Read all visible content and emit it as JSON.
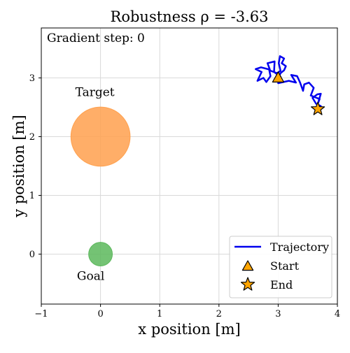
{
  "chart_data": {
    "type": "scatter",
    "title": "Robustness ρ = -3.63",
    "annotation": "Gradient step: 0",
    "xlabel": "x position [m]",
    "ylabel": "y position [m]",
    "xlim": [
      -1,
      4
    ],
    "ylim": [
      -0.85,
      3.85
    ],
    "xticks": [
      "−1",
      "0",
      "1",
      "2",
      "3",
      "4"
    ],
    "xtick_values": [
      -1,
      0,
      1,
      2,
      3,
      4
    ],
    "yticks": [
      "0",
      "1",
      "2",
      "3"
    ],
    "ytick_values": [
      0,
      1,
      2,
      3
    ],
    "grid": true,
    "regions": [
      {
        "label": "Target",
        "center": [
          0,
          2
        ],
        "radius": 0.5,
        "color": "#ffa04d"
      },
      {
        "label": "Goal",
        "center": [
          0,
          0
        ],
        "radius": 0.2,
        "color": "#5cb85c"
      }
    ],
    "trajectory": {
      "name": "Trajectory",
      "color": "#0000ee",
      "x": [
        3.0,
        3.04,
        3.1,
        3.13,
        3.06,
        3.1,
        3.03,
        3.01,
        3.04,
        2.98,
        2.85,
        2.87,
        2.8,
        2.75,
        2.65,
        2.72,
        2.62,
        2.71,
        2.86,
        2.82,
        2.94,
        2.93,
        3.04,
        3.0,
        3.18,
        3.3,
        3.22,
        3.32,
        3.37,
        3.42,
        3.44,
        3.52,
        3.6,
        3.55,
        3.7,
        3.67,
        3.72,
        3.66,
        3.58,
        3.64,
        3.72,
        3.67
      ],
      "y": [
        3.0,
        3.08,
        3.13,
        3.2,
        3.25,
        3.33,
        3.37,
        3.25,
        3.12,
        3.08,
        3.13,
        3.03,
        2.93,
        3.0,
        2.95,
        3.1,
        3.15,
        3.18,
        3.14,
        3.25,
        3.28,
        3.1,
        3.02,
        2.91,
        2.95,
        2.92,
        3.05,
        3.03,
        2.92,
        2.78,
        2.89,
        2.92,
        2.83,
        2.7,
        2.64,
        2.56,
        2.73,
        2.72,
        2.66,
        2.56,
        2.52,
        2.47
      ]
    },
    "markers": [
      {
        "name": "Start",
        "x": 3.0,
        "y": 3.0,
        "shape": "triangle",
        "color": "#ffa500"
      },
      {
        "name": "End",
        "x": 3.67,
        "y": 2.47,
        "shape": "star",
        "color": "#ffa500"
      }
    ],
    "legend": {
      "position": "lower-right",
      "entries": [
        "Trajectory",
        "Start",
        "End"
      ]
    }
  }
}
